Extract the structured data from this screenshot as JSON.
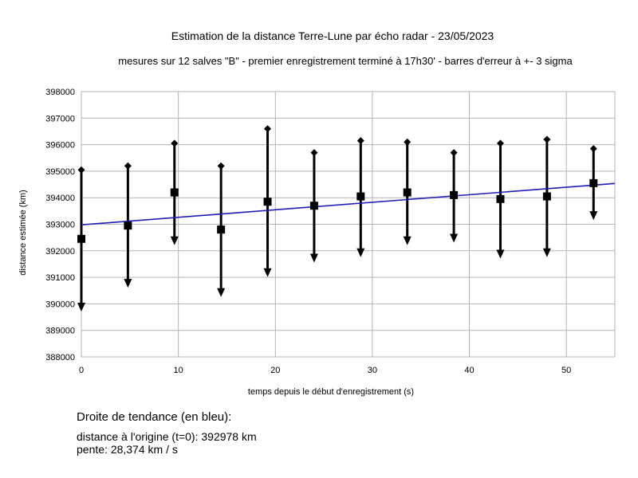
{
  "chart_data": {
    "type": "scatter",
    "title": "Estimation de la distance Terre-Lune par écho radar - 23/05/2023",
    "subtitle": "mesures sur 12 salves \"B\" -  premier enregistrement terminé à 17h30' - barres d'erreur à +- 3 sigma",
    "xlabel": "temps depuis le début d'enregistrement (s)",
    "ylabel": "distance estimée (km)",
    "xlim": [
      0,
      55
    ],
    "ylim": [
      388000,
      398000
    ],
    "xticks": [
      0,
      10,
      20,
      30,
      40,
      50
    ],
    "yticks": [
      388000,
      389000,
      390000,
      391000,
      392000,
      393000,
      394000,
      395000,
      396000,
      397000,
      398000
    ],
    "grid": true,
    "points": [
      {
        "x": 0.0,
        "y": 392450,
        "low": 389800,
        "high": 395050
      },
      {
        "x": 4.8,
        "y": 392950,
        "low": 390700,
        "high": 395200
      },
      {
        "x": 9.6,
        "y": 394200,
        "low": 392300,
        "high": 396050
      },
      {
        "x": 14.4,
        "y": 392800,
        "low": 390350,
        "high": 395200
      },
      {
        "x": 19.2,
        "y": 393850,
        "low": 391100,
        "high": 396600
      },
      {
        "x": 24.0,
        "y": 393700,
        "low": 391650,
        "high": 395700
      },
      {
        "x": 28.8,
        "y": 394050,
        "low": 391850,
        "high": 396150
      },
      {
        "x": 33.6,
        "y": 394200,
        "low": 392300,
        "high": 396100
      },
      {
        "x": 38.4,
        "y": 394100,
        "low": 392400,
        "high": 395700
      },
      {
        "x": 43.2,
        "y": 393950,
        "low": 391800,
        "high": 396050
      },
      {
        "x": 48.0,
        "y": 394050,
        "low": 391850,
        "high": 396200
      },
      {
        "x": 52.8,
        "y": 394550,
        "low": 393250,
        "high": 395850
      }
    ],
    "trendline": {
      "intercept": 392978,
      "slope": 28.374,
      "color": "#1f1fb4"
    },
    "colors": {
      "markers": "#000000",
      "grid": "#b3b3b3"
    }
  },
  "trend_info": {
    "heading": "Droite de tendance (en bleu):",
    "intercept_text": "distance à l'origine (t=0): 392978 km",
    "slope_text": "pente: 28,374 km / s"
  }
}
